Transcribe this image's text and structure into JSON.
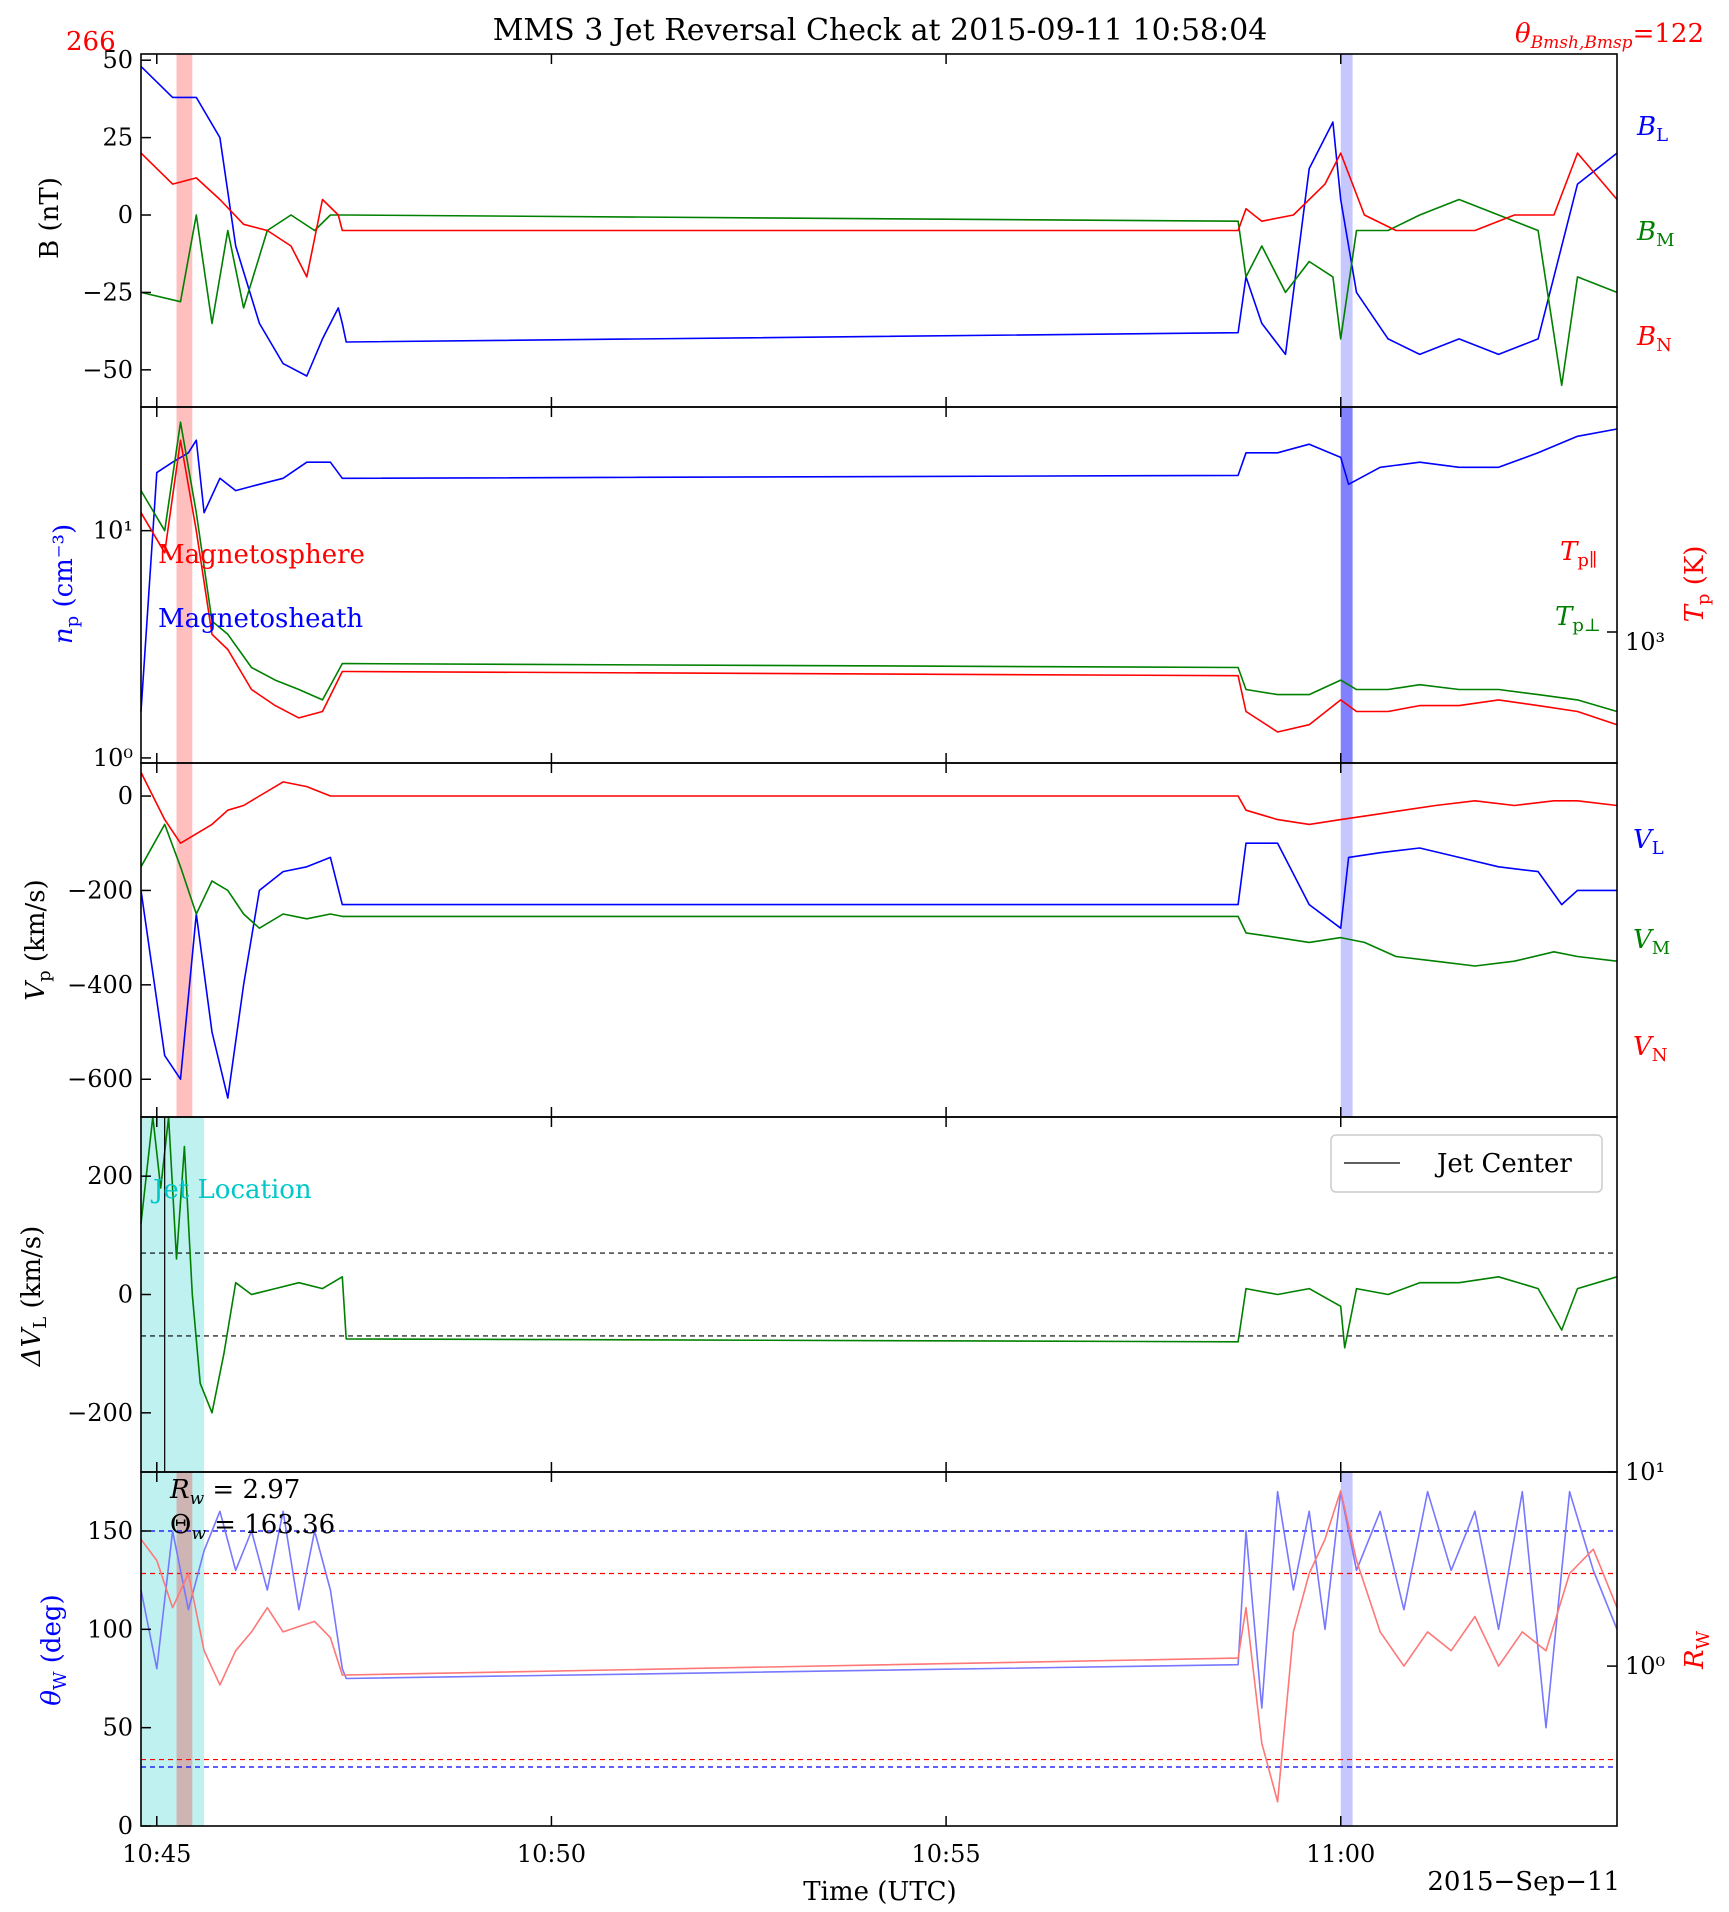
{
  "figure": {
    "title": "MMS 3 Jet Reversal Check at 2015-09-11 10:58:04",
    "theta_label": "θ",
    "theta_sub": "Bmsh,Bmsp",
    "theta_value": "=122",
    "top_left_value": "266",
    "date_label": "2015−Sep−11",
    "colors": {
      "blue": "#0000ff",
      "green": "#008000",
      "red": "#ff0000",
      "cyan": "#00c8c8"
    }
  },
  "xaxis": {
    "label": "Time (UTC)",
    "ticks": [
      "10:45",
      "10:50",
      "10:55",
      "11:00"
    ],
    "tick_minutes": [
      0,
      5,
      10,
      15
    ],
    "range_minutes": [
      -0.2,
      18.5
    ]
  },
  "shading": {
    "red_band": [
      0.25,
      0.45
    ],
    "blue_band": [
      15.0,
      15.15
    ],
    "cyan_band": [
      -0.2,
      0.6
    ]
  },
  "panels": {
    "b": {
      "ylabel": "B (nT)",
      "ticks": [
        "50",
        "25",
        "0",
        "−25",
        "−50"
      ],
      "legend": [
        "B",
        "B",
        "B"
      ],
      "legend_sub": [
        "L",
        "M",
        "N"
      ]
    },
    "n": {
      "ylabel_left": "n",
      "ylabel_left_sub": "p",
      "ylabel_left_unit": " (cm⁻³)",
      "ticks_left": [
        "10¹",
        "10⁰"
      ],
      "ylabel_right": "T",
      "ylabel_right_sub": "p",
      "ylabel_right_unit": " (K)",
      "ticks_right": [
        "10³"
      ],
      "annotation_msp": "Magnetosphere",
      "annotation_msh": "Magnetosheath",
      "legend": [
        "T",
        "T"
      ],
      "legend_sub": [
        "p∥",
        "p⊥"
      ]
    },
    "v": {
      "ylabel": "V",
      "ylabel_sub": "p",
      "ylabel_unit": " (km/s)",
      "ticks": [
        "0",
        "−200",
        "−400",
        "−600"
      ],
      "legend": [
        "V",
        "V",
        "V"
      ],
      "legend_sub": [
        "L",
        "M",
        "N"
      ]
    },
    "dv": {
      "ylabel": "ΔV",
      "ylabel_sub": "L",
      "ylabel_unit": " (km/s)",
      "ticks": [
        "200",
        "0",
        "−200"
      ],
      "legend_entry": "Jet Center",
      "annotation": "Jet Location",
      "thresholds": [
        70,
        -70
      ]
    },
    "w": {
      "ylabel_left": "θ",
      "ylabel_left_sub": "W",
      "ylabel_left_unit": " (deg)",
      "ticks_left": [
        "0",
        "50",
        "100",
        "150"
      ],
      "ylabel_right": "R",
      "ylabel_right_sub": "W",
      "ticks_right": [
        "10¹",
        "10⁰"
      ],
      "rw_text": "R",
      "rw_sub": "w",
      "rw_value": " = 2.97",
      "thw_text": "Θ",
      "thw_sub": "w",
      "thw_value": " = 163.36",
      "theta_thresholds": [
        150,
        30
      ],
      "rw_thresholds": [
        3.0,
        0.33
      ]
    }
  },
  "chart_data": [
    {
      "type": "line",
      "panel": "B (nT)",
      "x_units": "minutes after 10:45 UTC",
      "ylim": [
        -62,
        52
      ],
      "series": [
        {
          "name": "B_L",
          "color": "#0000ff",
          "x": [
            -0.2,
            0.2,
            0.5,
            0.8,
            1.0,
            1.3,
            1.6,
            1.9,
            2.1,
            2.3,
            2.35,
            2.4,
            13.7,
            13.8,
            14.0,
            14.3,
            14.6,
            14.9,
            15.0,
            15.2,
            15.6,
            16.0,
            16.5,
            17.0,
            17.5,
            18.0,
            18.5
          ],
          "y": [
            48,
            38,
            38,
            25,
            -10,
            -35,
            -48,
            -52,
            -40,
            -30,
            -35,
            -41,
            -38,
            -20,
            -35,
            -45,
            15,
            30,
            5,
            -25,
            -40,
            -45,
            -40,
            -45,
            -40,
            10,
            20
          ]
        },
        {
          "name": "B_M",
          "color": "#008000",
          "x": [
            -0.2,
            0.3,
            0.5,
            0.7,
            0.9,
            1.1,
            1.4,
            1.7,
            2.0,
            2.2,
            2.35,
            2.4,
            13.7,
            13.8,
            14.0,
            14.3,
            14.6,
            14.9,
            15.0,
            15.2,
            15.6,
            16.0,
            16.5,
            17.0,
            17.5,
            17.8,
            18.0,
            18.5
          ],
          "y": [
            -25,
            -28,
            0,
            -35,
            -5,
            -30,
            -5,
            0,
            -5,
            0,
            0,
            0,
            -2,
            -20,
            -10,
            -25,
            -15,
            -20,
            -40,
            -5,
            -5,
            0,
            5,
            0,
            -5,
            -55,
            -20,
            -25
          ]
        },
        {
          "name": "B_N",
          "color": "#ff0000",
          "x": [
            -0.2,
            0.2,
            0.5,
            0.8,
            1.1,
            1.4,
            1.7,
            1.9,
            2.1,
            2.3,
            2.35,
            2.4,
            13.7,
            13.8,
            14.0,
            14.4,
            14.8,
            15.0,
            15.3,
            15.7,
            16.2,
            16.7,
            17.2,
            17.7,
            18.0,
            18.5
          ],
          "y": [
            20,
            10,
            12,
            5,
            -3,
            -5,
            -10,
            -20,
            5,
            0,
            -5,
            -5,
            -5,
            2,
            -2,
            0,
            10,
            20,
            0,
            -5,
            -5,
            -5,
            0,
            0,
            20,
            5
          ]
        }
      ]
    },
    {
      "type": "line",
      "panel": "n_p (cm^-3) / T_p (K)",
      "x_units": "minutes after 10:45 UTC",
      "y_scale": "log",
      "ylim": [
        0.95,
        35
      ],
      "series": [
        {
          "name": "n_p",
          "color": "#0000ff",
          "x": [
            -0.2,
            0.0,
            0.2,
            0.4,
            0.5,
            0.6,
            0.8,
            1.0,
            1.3,
            1.6,
            1.9,
            2.2,
            2.35,
            2.4,
            13.7,
            13.8,
            14.2,
            14.6,
            15.0,
            15.1,
            15.5,
            16.0,
            16.5,
            17.0,
            17.5,
            18.0,
            18.5
          ],
          "y": [
            1.6,
            18,
            20,
            22,
            25,
            12,
            17,
            15,
            16,
            17,
            20,
            20,
            17,
            17,
            17.5,
            22,
            22,
            24,
            21,
            16,
            19,
            20,
            19,
            19,
            22,
            26,
            28
          ]
        },
        {
          "name": "T_p∥",
          "color": "#ff0000",
          "x": [
            -0.2,
            0.1,
            0.3,
            0.5,
            0.7,
            0.9,
            1.2,
            1.5,
            1.8,
            2.1,
            2.35,
            2.4,
            13.7,
            13.8,
            14.2,
            14.6,
            15.0,
            15.2,
            15.6,
            16.0,
            16.5,
            17.0,
            17.5,
            18.0,
            18.5
          ],
          "y": [
            12,
            8,
            25,
            10,
            3.5,
            3,
            2,
            1.7,
            1.5,
            1.6,
            2.4,
            2.4,
            2.3,
            1.6,
            1.3,
            1.4,
            1.8,
            1.6,
            1.6,
            1.7,
            1.7,
            1.8,
            1.7,
            1.6,
            1.4
          ]
        },
        {
          "name": "T_p⊥",
          "color": "#008000",
          "x": [
            -0.2,
            0.1,
            0.3,
            0.5,
            0.7,
            0.9,
            1.2,
            1.5,
            1.8,
            2.1,
            2.35,
            2.4,
            13.7,
            13.8,
            14.2,
            14.6,
            15.0,
            15.2,
            15.6,
            16.0,
            16.5,
            17.0,
            17.5,
            18.0,
            18.5
          ],
          "y": [
            15,
            10,
            30,
            12,
            4,
            3.5,
            2.5,
            2.2,
            2,
            1.8,
            2.6,
            2.6,
            2.5,
            2,
            1.9,
            1.9,
            2.2,
            2,
            2,
            2.1,
            2,
            2,
            1.9,
            1.8,
            1.6
          ]
        }
      ]
    },
    {
      "type": "line",
      "panel": "V_p (km/s)",
      "x_units": "minutes after 10:45 UTC",
      "ylim": [
        -680,
        70
      ],
      "series": [
        {
          "name": "V_L",
          "color": "#0000ff",
          "x": [
            -0.2,
            0.1,
            0.3,
            0.5,
            0.7,
            0.9,
            1.1,
            1.3,
            1.6,
            1.9,
            2.2,
            2.35,
            2.4,
            13.7,
            13.8,
            14.2,
            14.6,
            15.0,
            15.1,
            15.5,
            16.0,
            16.5,
            17.0,
            17.5,
            17.8,
            18.0,
            18.5
          ],
          "y": [
            -200,
            -550,
            -600,
            -250,
            -500,
            -640,
            -400,
            -200,
            -160,
            -150,
            -130,
            -230,
            -230,
            -230,
            -100,
            -100,
            -230,
            -280,
            -130,
            -120,
            -110,
            -130,
            -150,
            -160,
            -230,
            -200,
            -200
          ]
        },
        {
          "name": "V_M",
          "color": "#008000",
          "x": [
            -0.2,
            0.1,
            0.3,
            0.5,
            0.7,
            0.9,
            1.1,
            1.3,
            1.6,
            1.9,
            2.2,
            2.35,
            2.4,
            13.7,
            13.8,
            14.2,
            14.6,
            15.0,
            15.3,
            15.7,
            16.2,
            16.7,
            17.2,
            17.7,
            18.0,
            18.5
          ],
          "y": [
            -150,
            -60,
            -150,
            -250,
            -180,
            -200,
            -250,
            -280,
            -250,
            -260,
            -250,
            -255,
            -255,
            -255,
            -290,
            -300,
            -310,
            -300,
            -310,
            -340,
            -350,
            -360,
            -350,
            -330,
            -340,
            -350
          ]
        },
        {
          "name": "V_N",
          "color": "#ff0000",
          "x": [
            -0.2,
            0.1,
            0.3,
            0.5,
            0.7,
            0.9,
            1.1,
            1.3,
            1.6,
            1.9,
            2.2,
            2.35,
            2.4,
            13.7,
            13.8,
            14.2,
            14.6,
            15.0,
            15.4,
            15.8,
            16.2,
            16.7,
            17.2,
            17.7,
            18.0,
            18.5
          ],
          "y": [
            50,
            -50,
            -100,
            -80,
            -60,
            -30,
            -20,
            0,
            30,
            20,
            0,
            0,
            0,
            0,
            -30,
            -50,
            -60,
            -50,
            -40,
            -30,
            -20,
            -10,
            -20,
            -10,
            -10,
            -20
          ]
        }
      ]
    },
    {
      "type": "line",
      "panel": "ΔV_L (km/s)",
      "x_units": "minutes after 10:45 UTC",
      "ylim": [
        -300,
        300
      ],
      "series": [
        {
          "name": "ΔV_L",
          "color": "#008000",
          "x": [
            -0.2,
            -0.05,
            0.05,
            0.15,
            0.25,
            0.35,
            0.45,
            0.55,
            0.7,
            0.85,
            1.0,
            1.2,
            1.5,
            1.8,
            2.1,
            2.35,
            2.4,
            13.7,
            13.8,
            14.2,
            14.6,
            15.0,
            15.05,
            15.2,
            15.6,
            16.0,
            16.5,
            17.0,
            17.5,
            17.8,
            18.0,
            18.5
          ],
          "y": [
            120,
            300,
            180,
            300,
            60,
            250,
            0,
            -150,
            -200,
            -100,
            20,
            0,
            10,
            20,
            10,
            30,
            -75,
            -80,
            10,
            0,
            10,
            -20,
            -90,
            10,
            0,
            20,
            20,
            30,
            10,
            -60,
            10,
            30
          ]
        }
      ],
      "vertical_marker": {
        "name": "Jet Center",
        "x": 0.1
      }
    },
    {
      "type": "line",
      "panel": "θ_W (deg) / R_W",
      "x_units": "minutes after 10:45 UTC",
      "ylim_left": [
        0,
        180
      ],
      "ylim_right_log": [
        0.15,
        10
      ],
      "series": [
        {
          "name": "θ_W",
          "color": "#7777ff",
          "axis": "left",
          "x": [
            -0.2,
            0.0,
            0.2,
            0.4,
            0.6,
            0.8,
            1.0,
            1.2,
            1.4,
            1.6,
            1.8,
            2.0,
            2.2,
            2.35,
            2.4,
            13.7,
            13.8,
            14.0,
            14.2,
            14.4,
            14.6,
            14.8,
            15.0,
            15.2,
            15.5,
            15.8,
            16.1,
            16.4,
            16.7,
            17.0,
            17.3,
            17.6,
            17.9,
            18.2,
            18.5
          ],
          "y": [
            120,
            80,
            150,
            110,
            140,
            160,
            130,
            150,
            120,
            160,
            110,
            150,
            120,
            80,
            75,
            82,
            150,
            60,
            170,
            120,
            160,
            100,
            170,
            130,
            160,
            110,
            170,
            130,
            160,
            100,
            170,
            50,
            170,
            130,
            100
          ]
        },
        {
          "name": "R_W",
          "color": "#ff7777",
          "axis": "right",
          "x": [
            -0.2,
            0.0,
            0.2,
            0.4,
            0.6,
            0.8,
            1.0,
            1.2,
            1.4,
            1.6,
            1.8,
            2.0,
            2.2,
            2.35,
            2.4,
            13.7,
            13.8,
            14.0,
            14.2,
            14.4,
            14.6,
            14.8,
            15.0,
            15.2,
            15.5,
            15.8,
            16.1,
            16.4,
            16.7,
            17.0,
            17.3,
            17.6,
            17.9,
            18.2,
            18.5
          ],
          "y": [
            4.5,
            3.5,
            2.0,
            3.0,
            1.2,
            0.8,
            1.2,
            1.5,
            2.0,
            1.5,
            1.6,
            1.7,
            1.4,
            0.9,
            0.9,
            1.1,
            2.0,
            0.4,
            0.2,
            1.5,
            3.0,
            4.5,
            8.0,
            3.5,
            1.5,
            1.0,
            1.5,
            1.2,
            1.8,
            1.0,
            1.5,
            1.2,
            3.0,
            4.0,
            2.0
          ]
        }
      ]
    }
  ]
}
